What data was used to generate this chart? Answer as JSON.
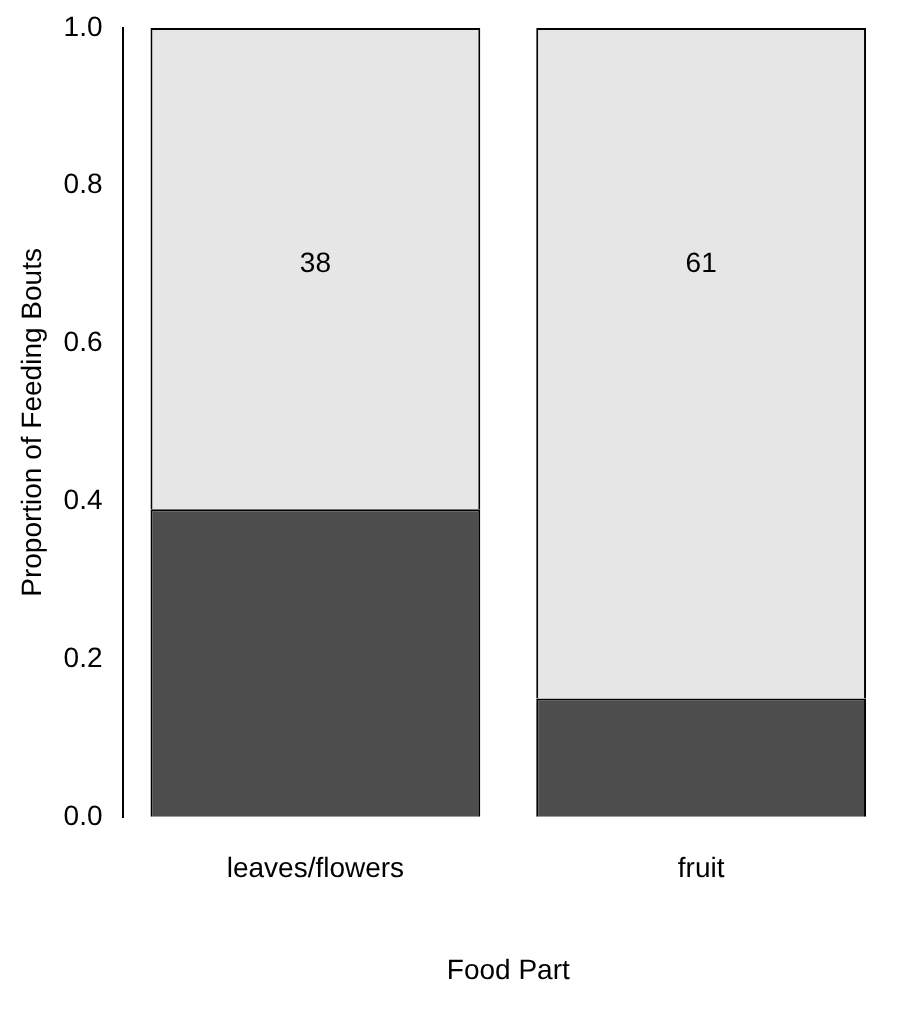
{
  "chart_data": {
    "type": "bar",
    "stacked": true,
    "xlabel": "Food Part",
    "ylabel": "Proportion of Feeding Bouts",
    "categories": [
      "leaves/flowers",
      "fruit"
    ],
    "series": [
      {
        "color": "#4d4d4d",
        "values": [
          0.39,
          0.15
        ]
      },
      {
        "color": "#e6e6e6",
        "values": [
          0.61,
          0.85
        ]
      }
    ],
    "ylim": [
      0,
      1
    ],
    "yticks": [
      {
        "value": 0,
        "label": "0.0"
      },
      0.2,
      0.4,
      0.6,
      0.8,
      {
        "value": 1,
        "label": "1.0"
      }
    ],
    "grid": false,
    "legend": false,
    "annotations": [
      "38",
      "61"
    ]
  }
}
